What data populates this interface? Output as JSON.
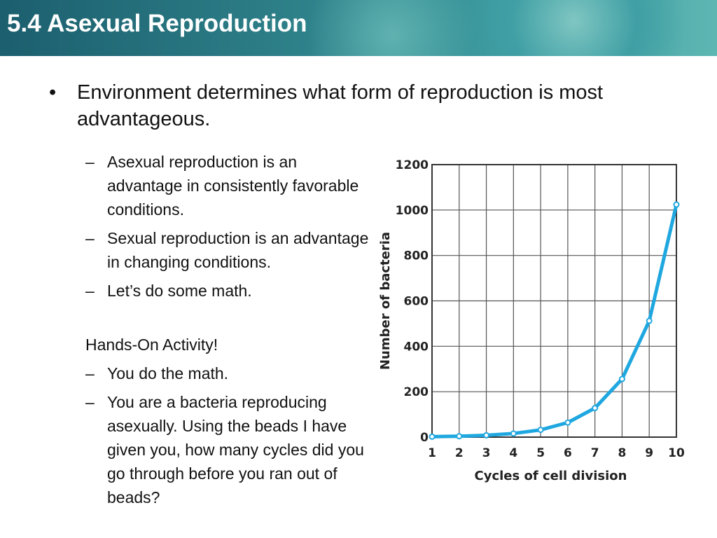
{
  "header": {
    "title": "5.4 Asexual Reproduction"
  },
  "main_bullet": "Environment determines what form of reproduction is most advantageous.",
  "sub_bullets_1": [
    "Asexual reproduction is an advantage in consistently favorable conditions.",
    "Sexual reproduction is an advantage in changing conditions.",
    "Let’s do some math."
  ],
  "note": "Hands-On Activity!",
  "sub_bullets_2": [
    "You do the math.",
    "You are a bacteria reproducing asexually. Using the beads I have given you, how many cycles did you go through before you ran out of beads?"
  ],
  "chart_data": {
    "type": "line",
    "x": [
      1,
      2,
      3,
      4,
      5,
      6,
      7,
      8,
      9,
      10
    ],
    "series": [
      {
        "name": "Number of bacteria",
        "color": "#1fa7e0",
        "values": [
          2,
          4,
          8,
          16,
          32,
          64,
          128,
          256,
          512,
          1024
        ]
      }
    ],
    "xlabel": "Cycles of cell division",
    "ylabel": "Number of bacteria",
    "xlim": [
      1,
      10
    ],
    "xticks": [
      1,
      2,
      3,
      4,
      5,
      6,
      7,
      8,
      9,
      10
    ],
    "ylim": [
      0,
      1200
    ],
    "yticks": [
      0,
      200,
      400,
      600,
      800,
      1000,
      1200
    ],
    "grid": true
  }
}
